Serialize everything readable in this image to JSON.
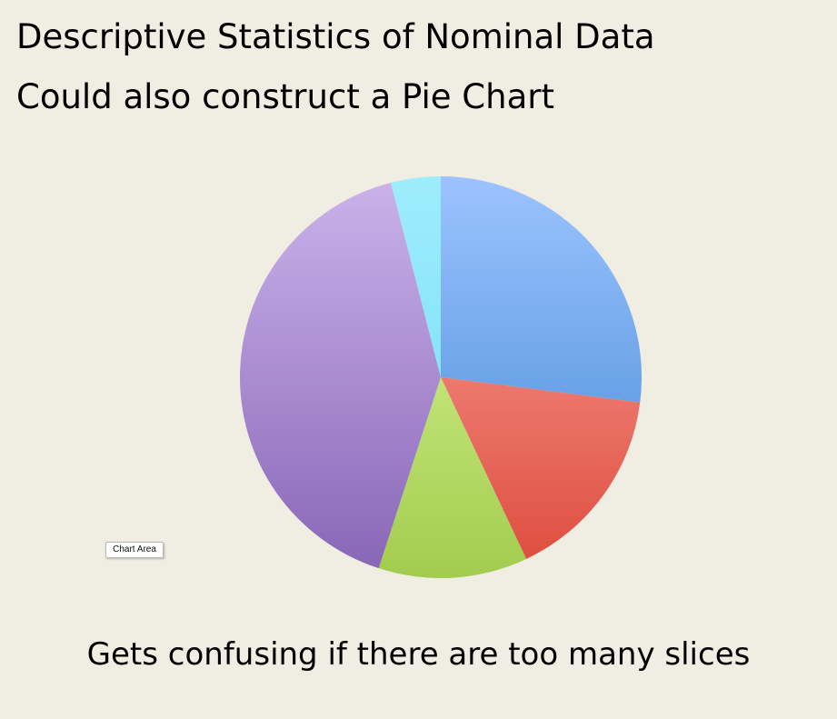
{
  "slide": {
    "title_line_1": "Descriptive Statistics of Nominal Data",
    "title_line_2": "Could also construct a Pie Chart",
    "caption": "Gets confusing if there are too many slices",
    "tooltip": "Chart Area"
  },
  "chart_data": {
    "type": "pie",
    "title": "",
    "start_angle_deg": 0,
    "direction": "clockwise",
    "legend": "none",
    "values": [
      27,
      16,
      12,
      41,
      4
    ],
    "colors": [
      [
        "#9cc3ff",
        "#3f87d3"
      ],
      [
        "#ffa6a0",
        "#dc4b3c"
      ],
      [
        "#e1fb9d",
        "#a2cc4f"
      ],
      [
        "#cbb3eb",
        "#8765b6"
      ],
      [
        "#9eedfd",
        "#6fd9f5"
      ]
    ]
  }
}
